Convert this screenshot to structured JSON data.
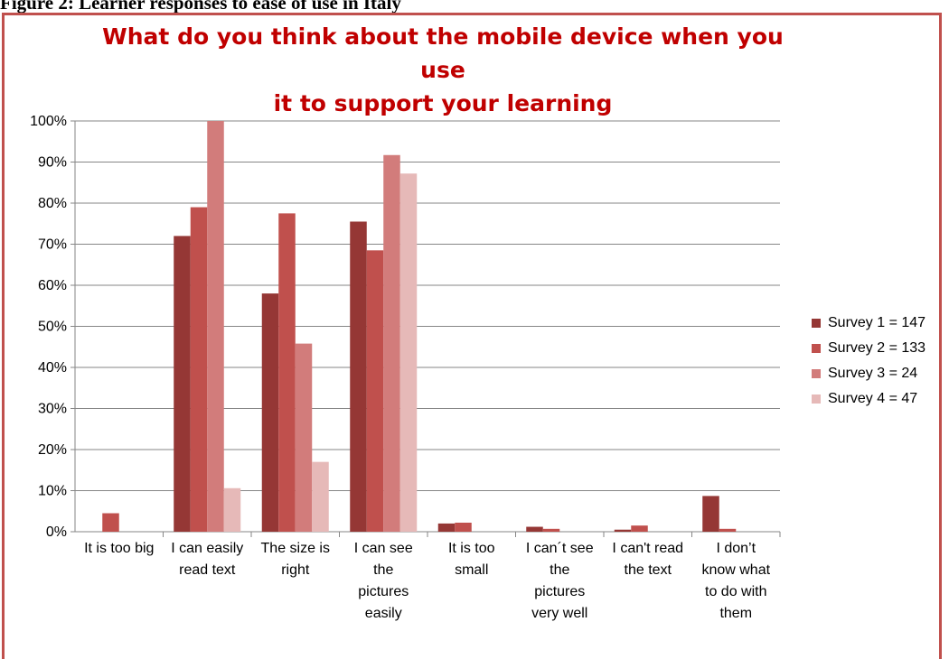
{
  "figure_caption": "Figure 2: Learner responses to ease of use in Italy",
  "chart_data": {
    "type": "bar",
    "title_lines": [
      "What do you think about the mobile device when you use",
      "it to support your learning"
    ],
    "categories": [
      [
        "It is too big"
      ],
      [
        "I can easily",
        "read text"
      ],
      [
        "The size is",
        "right"
      ],
      [
        "I can see",
        "the",
        "pictures",
        "easily"
      ],
      [
        "It is too",
        "small"
      ],
      [
        "I can´t see",
        "the",
        "pictures",
        "very well"
      ],
      [
        "I can't read",
        "the text"
      ],
      [
        "I don’t",
        "know what",
        "to do with",
        "them"
      ]
    ],
    "series": [
      {
        "name": "Survey 1 = 147",
        "color": "#953735",
        "values": [
          0,
          72,
          58,
          75.5,
          2,
          1.2,
          0.5,
          8.7
        ]
      },
      {
        "name": "Survey 2 = 133",
        "color": "#c0504d",
        "values": [
          4.5,
          79,
          77.5,
          68.5,
          2.2,
          0.7,
          1.5,
          0.7
        ]
      },
      {
        "name": "Survey 3 = 24",
        "color": "#d27c7b",
        "values": [
          0,
          100,
          45.8,
          91.7,
          0,
          0,
          0,
          0
        ]
      },
      {
        "name": "Survey 4 = 47",
        "color": "#e6b9b8",
        "values": [
          0,
          10.6,
          17,
          87.2,
          0,
          0,
          0,
          0
        ]
      }
    ],
    "y_ticks": [
      "0%",
      "10%",
      "20%",
      "30%",
      "40%",
      "50%",
      "60%",
      "70%",
      "80%",
      "90%",
      "100%"
    ],
    "ylim": [
      0,
      100
    ],
    "grid": true,
    "legend_position": "right"
  }
}
